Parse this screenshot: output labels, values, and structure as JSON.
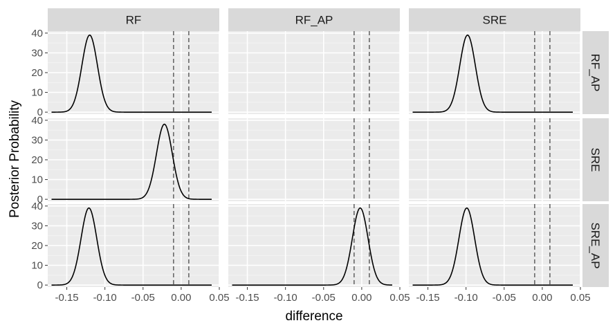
{
  "chart_data": {
    "type": "line",
    "chart_kind": "faceted density grid (posterior distributions of differences)",
    "xlabel": "difference",
    "ylabel": "Posterior Probability",
    "col_facets": [
      "RF",
      "RF_AP",
      "SRE"
    ],
    "row_facets": [
      "RF_AP",
      "SRE",
      "SRE_AP"
    ],
    "xlim": [
      -0.175,
      0.05
    ],
    "ylim": [
      -1,
      41
    ],
    "x_ticks": [
      -0.15,
      -0.1,
      -0.05,
      0.0,
      0.05
    ],
    "x_tick_labels": [
      "-0.15",
      "-0.10",
      "-0.05",
      "0.00",
      "0.05"
    ],
    "y_ticks": [
      0,
      10,
      20,
      30,
      40
    ],
    "y_tick_labels": [
      "0",
      "10",
      "20",
      "30",
      "40"
    ],
    "rope_lines": [
      -0.01,
      0.01
    ],
    "x_range": [
      -0.17,
      0.04
    ],
    "grid": "on",
    "line_color": "#000000",
    "rope_line_color": "#555555",
    "panel_background": "#ebebeb",
    "strip_background": "#d9d9d9",
    "panels": [
      {
        "row": "RF_AP",
        "col": "RF",
        "has_curve": true,
        "mean": -0.12,
        "sd": 0.0102,
        "peak": 39
      },
      {
        "row": "RF_AP",
        "col": "RF_AP",
        "has_curve": false
      },
      {
        "row": "RF_AP",
        "col": "SRE",
        "has_curve": true,
        "mean": -0.098,
        "sd": 0.0102,
        "peak": 39
      },
      {
        "row": "SRE",
        "col": "RF",
        "has_curve": true,
        "mean": -0.022,
        "sd": 0.0104,
        "peak": 38
      },
      {
        "row": "SRE",
        "col": "RF_AP",
        "has_curve": false
      },
      {
        "row": "SRE",
        "col": "SRE",
        "has_curve": false
      },
      {
        "row": "SRE_AP",
        "col": "RF",
        "has_curve": true,
        "mean": -0.121,
        "sd": 0.0103,
        "peak": 39
      },
      {
        "row": "SRE_AP",
        "col": "RF_AP",
        "has_curve": true,
        "mean": -0.002,
        "sd": 0.0103,
        "peak": 39
      },
      {
        "row": "SRE_AP",
        "col": "SRE",
        "has_curve": true,
        "mean": -0.099,
        "sd": 0.0103,
        "peak": 39
      }
    ]
  }
}
